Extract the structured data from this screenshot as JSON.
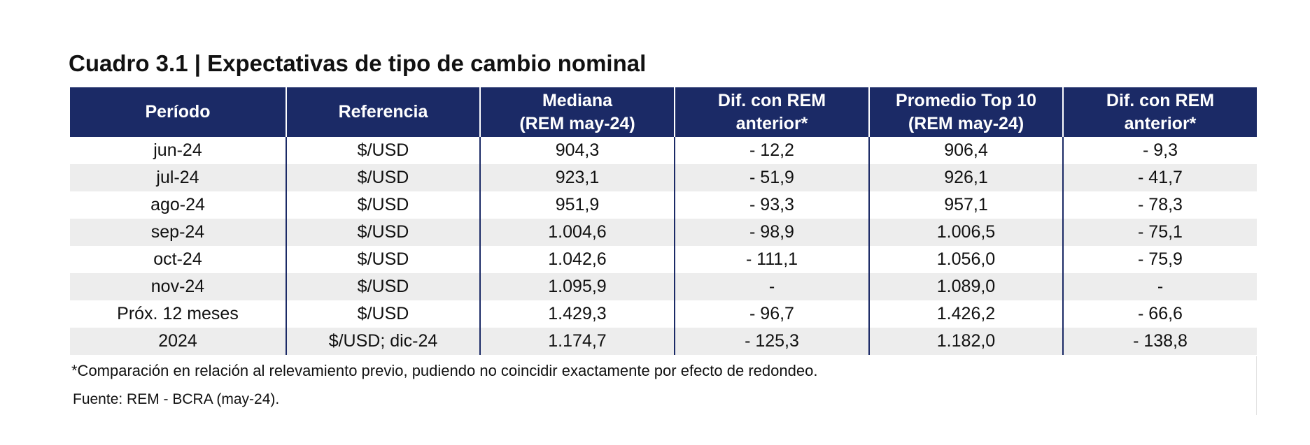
{
  "title": "Cuadro 3.1 | Expectativas de tipo de cambio nominal",
  "table": {
    "headers": [
      [
        "Período"
      ],
      [
        "Referencia"
      ],
      [
        "Mediana",
        "(REM may-24)"
      ],
      [
        "Dif. con REM",
        "anterior*"
      ],
      [
        "Promedio Top 10",
        "(REM may-24)"
      ],
      [
        "Dif. con REM",
        "anterior*"
      ]
    ],
    "rows": [
      [
        "jun-24",
        "$/USD",
        "904,3",
        "- 12,2",
        "906,4",
        "- 9,3"
      ],
      [
        "jul-24",
        "$/USD",
        "923,1",
        "- 51,9",
        "926,1",
        "- 41,7"
      ],
      [
        "ago-24",
        "$/USD",
        "951,9",
        "- 93,3",
        "957,1",
        "- 78,3"
      ],
      [
        "sep-24",
        "$/USD",
        "1.004,6",
        "- 98,9",
        "1.006,5",
        "- 75,1"
      ],
      [
        "oct-24",
        "$/USD",
        "1.042,6",
        "- 111,1",
        "1.056,0",
        "- 75,9"
      ],
      [
        "nov-24",
        "$/USD",
        "1.095,9",
        "-",
        "1.089,0",
        "-"
      ],
      [
        "Próx. 12 meses",
        "$/USD",
        "1.429,3",
        "- 96,7",
        "1.426,2",
        "- 66,6"
      ],
      [
        "2024",
        "$/USD; dic-24",
        "1.174,7",
        "- 125,3",
        "1.182,0",
        "- 138,8"
      ]
    ]
  },
  "footnote": "*Comparación en relación al relevamiento previo, pudiendo no coincidir exactamente por efecto de redondeo.",
  "source": "Fuente: REM - BCRA (may-24).",
  "colors": {
    "header_bg": "#1b2a66",
    "stripe": "#ededed"
  }
}
